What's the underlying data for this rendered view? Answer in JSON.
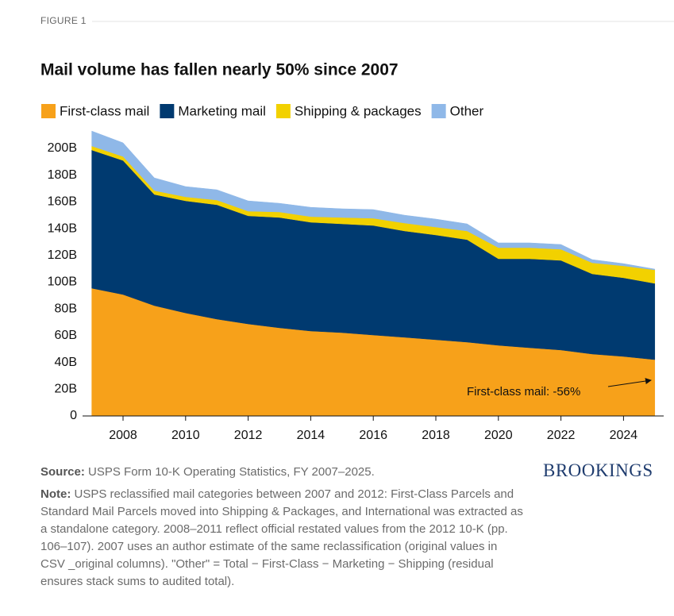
{
  "figure_label": "FIGURE 1",
  "chart_data": {
    "type": "area",
    "stacked": true,
    "title": "Mail volume has fallen nearly 50% since 2007",
    "x": [
      2007,
      2008,
      2009,
      2010,
      2011,
      2012,
      2013,
      2014,
      2015,
      2016,
      2017,
      2018,
      2019,
      2020,
      2021,
      2022,
      2023,
      2024,
      2025
    ],
    "series": [
      {
        "name": "First-class mail",
        "color": "#f7a11a",
        "values": [
          95.5,
          90.8,
          82.5,
          77.0,
          72.4,
          68.8,
          65.9,
          63.5,
          62.3,
          60.5,
          58.8,
          57.0,
          55.2,
          52.8,
          51.0,
          49.3,
          46.3,
          44.5,
          42.1
        ]
      },
      {
        "name": "Marketing mail",
        "color": "#003a70",
        "values": [
          103.3,
          100.2,
          83.1,
          83.8,
          85.5,
          80.8,
          82.5,
          81.3,
          81.3,
          81.9,
          79.5,
          78.3,
          76.6,
          64.7,
          66.5,
          67.0,
          59.9,
          58.8,
          57.0
        ]
      },
      {
        "name": "Shipping & packages",
        "color": "#f2d100",
        "values": [
          3.0,
          3.0,
          2.9,
          3.0,
          3.5,
          3.5,
          4.1,
          4.2,
          4.8,
          5.4,
          5.9,
          5.9,
          6.5,
          8.3,
          8.3,
          8.3,
          8.3,
          8.9,
          10.1
        ]
      },
      {
        "name": "Other",
        "color": "#8fb8e8",
        "values": [
          11.2,
          10.2,
          9.5,
          7.7,
          7.7,
          7.7,
          6.5,
          7.0,
          6.5,
          6.5,
          5.9,
          6.0,
          5.3,
          3.6,
          3.6,
          3.6,
          2.4,
          1.7,
          0.6
        ]
      }
    ],
    "xlim": [
      2007,
      2025
    ],
    "xticks": [
      2008,
      2010,
      2012,
      2014,
      2016,
      2018,
      2020,
      2022,
      2024
    ],
    "ylim": [
      0,
      215
    ],
    "yticks": [
      0,
      {
        "value": 20,
        "label": "20B"
      },
      {
        "value": 40,
        "label": "40B"
      },
      {
        "value": 60,
        "label": "60B"
      },
      {
        "value": 80,
        "label": "80B"
      },
      {
        "value": 100,
        "label": "100B"
      },
      {
        "value": 120,
        "label": "120B"
      },
      {
        "value": 140,
        "label": "140B"
      },
      {
        "value": 160,
        "label": "160B"
      },
      {
        "value": 180,
        "label": "180B"
      },
      {
        "value": 200,
        "label": "200B"
      }
    ],
    "grid": false,
    "legend": "top-left",
    "annotations": [
      {
        "text": "First-class mail: -56%"
      }
    ]
  },
  "source": {
    "label": "Source:",
    "text": "USPS Form 10-K Operating Statistics, FY 2007–2025."
  },
  "note": {
    "label": "Note:",
    "text": "USPS reclassified mail categories between 2007 and 2012: First-Class Parcels and Standard Mail Parcels moved into Shipping & Packages, and International was extracted as a standalone category. 2008–2011 reflect official restated values from the 2012 10-K (pp. 106–107). 2007 uses an author estimate of the same reclassification (original values in CSV _original columns). \"Other\" = Total − First-Class − Marketing − Shipping (residual ensures stack sums to audited total)."
  },
  "brand": "BROOKINGS"
}
